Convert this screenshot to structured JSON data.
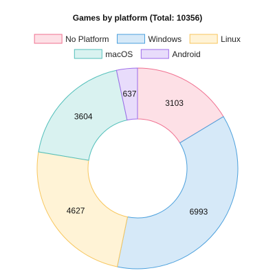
{
  "chart_data": {
    "type": "pie",
    "donut": true,
    "title": "Games by platform (Total: 10356)",
    "legend_position": "top",
    "slices": [
      {
        "label": "No Platform",
        "value": 3103,
        "fill": "#fde0e6",
        "stroke": "#f06f8f"
      },
      {
        "label": "Windows",
        "value": 6993,
        "fill": "#d6e9f8",
        "stroke": "#4a9fdc"
      },
      {
        "label": "Linux",
        "value": 4627,
        "fill": "#fff3d6",
        "stroke": "#f7c65c"
      },
      {
        "label": "macOS",
        "value": 3604,
        "fill": "#d9f2f0",
        "stroke": "#52bfba"
      },
      {
        "label": "Android",
        "value": 637,
        "fill": "#e8dcfb",
        "stroke": "#9c6ae8"
      }
    ]
  }
}
